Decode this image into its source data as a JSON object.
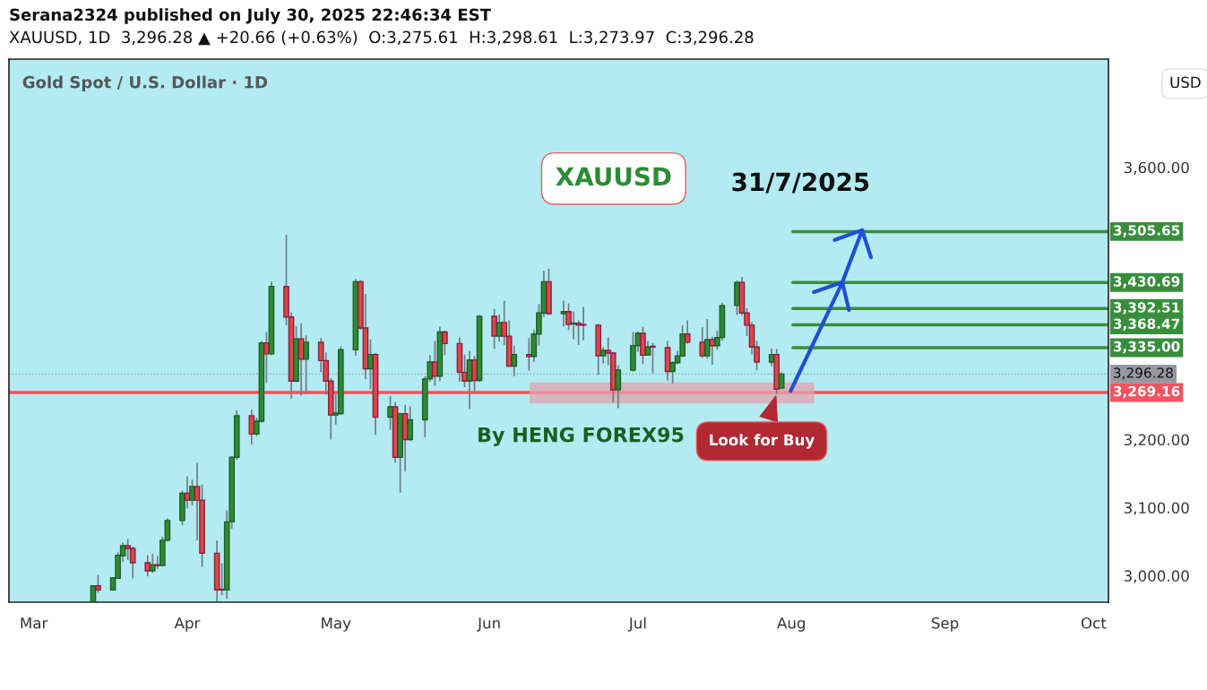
{
  "chart_data": {
    "type": "candlestick",
    "title": "Serana2324 published on July 30, 2025 22:46:34 EST",
    "subtitle": "XAUUSD, 1D  3,296.28 ▲ +20.66 (+0.63%)  O:3,275.61  H:3,298.61  L:3,273.97  C:3,296.28",
    "x": [
      "2025-03-13",
      "2025-03-14",
      "2025-03-17",
      "2025-03-18",
      "2025-03-19",
      "2025-03-20",
      "2025-03-21",
      "2025-03-24",
      "2025-03-25",
      "2025-03-26",
      "2025-03-27",
      "2025-03-28",
      "2025-03-31",
      "2025-04-01",
      "2025-04-02",
      "2025-04-03",
      "2025-04-04",
      "2025-04-07",
      "2025-04-08",
      "2025-04-09",
      "2025-04-10",
      "2025-04-11",
      "2025-04-14",
      "2025-04-15",
      "2025-04-16",
      "2025-04-17",
      "2025-04-18",
      "2025-04-21",
      "2025-04-22",
      "2025-04-23",
      "2025-04-24",
      "2025-04-25",
      "2025-04-28",
      "2025-04-29",
      "2025-04-30",
      "2025-05-01",
      "2025-05-02",
      "2025-05-05",
      "2025-05-06",
      "2025-05-07",
      "2025-05-08",
      "2025-05-09",
      "2025-05-12",
      "2025-05-13",
      "2025-05-14",
      "2025-05-15",
      "2025-05-16",
      "2025-05-19",
      "2025-05-20",
      "2025-05-21",
      "2025-05-22",
      "2025-05-23",
      "2025-05-26",
      "2025-05-27",
      "2025-05-28",
      "2025-05-29",
      "2025-05-30",
      "2025-06-02",
      "2025-06-03",
      "2025-06-04",
      "2025-06-05",
      "2025-06-06",
      "2025-06-09",
      "2025-06-10",
      "2025-06-11",
      "2025-06-12",
      "2025-06-13",
      "2025-06-16",
      "2025-06-17",
      "2025-06-18",
      "2025-06-19",
      "2025-06-20",
      "2025-06-23",
      "2025-06-24",
      "2025-06-25",
      "2025-06-26",
      "2025-06-27",
      "2025-06-30",
      "2025-07-01",
      "2025-07-02",
      "2025-07-03",
      "2025-07-04",
      "2025-07-07",
      "2025-07-08",
      "2025-07-09",
      "2025-07-10",
      "2025-07-11",
      "2025-07-14",
      "2025-07-15",
      "2025-07-16",
      "2025-07-17",
      "2025-07-18",
      "2025-07-21",
      "2025-07-22",
      "2025-07-23",
      "2025-07-24",
      "2025-07-25",
      "2025-07-28",
      "2025-07-29",
      "2025-07-30"
    ],
    "ohlc": [
      [
        2962,
        2985,
        2962,
        2985
      ],
      [
        2985,
        3001,
        2975,
        2979
      ],
      [
        2979,
        2998,
        2978,
        2997
      ],
      [
        2996,
        3034,
        2996,
        3030
      ],
      [
        3029,
        3049,
        3020,
        3044
      ],
      [
        3044,
        3054,
        3023,
        3040
      ],
      [
        3040,
        3043,
        2996,
        3019
      ],
      [
        3019,
        3030,
        2999,
        3007
      ],
      [
        3007,
        3032,
        3004,
        3016
      ],
      [
        3016,
        3029,
        3010,
        3015
      ],
      [
        3015,
        3057,
        3014,
        3052
      ],
      [
        3052,
        3084,
        3050,
        3081
      ],
      [
        3081,
        3125,
        3074,
        3121
      ],
      [
        3121,
        3146,
        3099,
        3111
      ],
      [
        3111,
        3141,
        3103,
        3131
      ],
      [
        3131,
        3166,
        3052,
        3111
      ],
      [
        3111,
        3134,
        3013,
        3033
      ],
      [
        3033,
        3052,
        2962,
        2979
      ],
      [
        2980,
        3018,
        2971,
        2979
      ],
      [
        2979,
        3096,
        2966,
        3079
      ],
      [
        3079,
        3175,
        3069,
        3174
      ],
      [
        3174,
        3243,
        3170,
        3235
      ],
      [
        3235,
        3244,
        3193,
        3208
      ],
      [
        3208,
        3232,
        3205,
        3227
      ],
      [
        3227,
        3345,
        3225,
        3342
      ],
      [
        3342,
        3358,
        3283,
        3326
      ],
      [
        3326,
        3432,
        3324,
        3425
      ],
      [
        3425,
        3501,
        3368,
        3380
      ],
      [
        3380,
        3387,
        3260,
        3286
      ],
      [
        3286,
        3367,
        3284,
        3348
      ],
      [
        3348,
        3371,
        3265,
        3318
      ],
      [
        3318,
        3353,
        3267,
        3343
      ],
      [
        3343,
        3349,
        3299,
        3316
      ],
      [
        3316,
        3328,
        3266,
        3286
      ],
      [
        3286,
        3290,
        3200,
        3236
      ],
      [
        3236,
        3268,
        3222,
        3239
      ],
      [
        3238,
        3337,
        3236,
        3332
      ],
      [
        3332,
        3436,
        3323,
        3432
      ],
      [
        3432,
        3434,
        3361,
        3364
      ],
      [
        3364,
        3414,
        3289,
        3304
      ],
      [
        3304,
        3347,
        3274,
        3325
      ],
      [
        3325,
        3327,
        3207,
        3233
      ],
      [
        3233,
        3264,
        3214,
        3248
      ],
      [
        3248,
        3255,
        3166,
        3174
      ],
      [
        3174,
        3239,
        3122,
        3238
      ],
      [
        3238,
        3251,
        3153,
        3200
      ],
      [
        3200,
        3249,
        3198,
        3229
      ],
      [
        3229,
        3293,
        3203,
        3289
      ],
      [
        3289,
        3324,
        3285,
        3314
      ],
      [
        3314,
        3345,
        3279,
        3293
      ],
      [
        3293,
        3366,
        3286,
        3358
      ],
      [
        3358,
        3360,
        3324,
        3341
      ],
      [
        3341,
        3350,
        3285,
        3299
      ],
      [
        3299,
        3325,
        3277,
        3286
      ],
      [
        3286,
        3330,
        3245,
        3317
      ],
      [
        3317,
        3323,
        3270,
        3287
      ],
      [
        3287,
        3383,
        3285,
        3381
      ],
      [
        3381,
        3392,
        3333,
        3352
      ],
      [
        3352,
        3384,
        3344,
        3372
      ],
      [
        3372,
        3404,
        3339,
        3352
      ],
      [
        3352,
        3375,
        3307,
        3308
      ],
      [
        3308,
        3338,
        3293,
        3325
      ],
      [
        3325,
        3349,
        3301,
        3322
      ],
      [
        3322,
        3361,
        3314,
        3355
      ],
      [
        3355,
        3399,
        3338,
        3386
      ],
      [
        3386,
        3448,
        3380,
        3432
      ],
      [
        3432,
        3451,
        3383,
        3385
      ],
      [
        3385,
        3404,
        3366,
        3388
      ],
      [
        3388,
        3400,
        3361,
        3369
      ],
      [
        3370,
        3388,
        3347,
        3371
      ],
      [
        3371,
        3375,
        3339,
        3368
      ],
      [
        3369,
        3395,
        3346,
        3368
      ],
      [
        3368,
        3370,
        3295,
        3323
      ],
      [
        3323,
        3336,
        3312,
        3331
      ],
      [
        3331,
        3350,
        3309,
        3327
      ],
      [
        3327,
        3329,
        3254,
        3273
      ],
      [
        3273,
        3309,
        3246,
        3302
      ],
      [
        3302,
        3358,
        3300,
        3338
      ],
      [
        3338,
        3359,
        3329,
        3356
      ],
      [
        3356,
        3366,
        3311,
        3324
      ],
      [
        3324,
        3345,
        3323,
        3336
      ],
      [
        3337,
        3342,
        3297,
        3336
      ],
      [
        3335,
        3345,
        3287,
        3300
      ],
      [
        3300,
        3315,
        3282,
        3313
      ],
      [
        3313,
        3330,
        3311,
        3323
      ],
      [
        3323,
        3368,
        3321,
        3355
      ],
      [
        3355,
        3375,
        3341,
        3343
      ],
      [
        3343,
        3365,
        3320,
        3323
      ],
      [
        3323,
        3377,
        3319,
        3347
      ],
      [
        3347,
        3351,
        3310,
        3338
      ],
      [
        3338,
        3360,
        3332,
        3350
      ],
      [
        3350,
        3401,
        3345,
        3397
      ],
      [
        3397,
        3434,
        3383,
        3431
      ],
      [
        3431,
        3439,
        3382,
        3386
      ],
      [
        3386,
        3393,
        3352,
        3368
      ],
      [
        3368,
        3373,
        3325,
        3336
      ],
      [
        3336,
        3345,
        3302,
        3314
      ],
      [
        3314,
        3334,
        3308,
        3325
      ],
      [
        3325,
        3333,
        3267,
        3274
      ],
      [
        3275.61,
        3298.61,
        3273.97,
        3296.28
      ]
    ],
    "colors": [
      "#2e8b35",
      "#dc4a3d",
      "#2e8b35",
      "#2e8b35",
      "#2e8b35",
      "#dc4a3d",
      "#dc4a3d",
      "#dc4a3d",
      "#2e8b35",
      "#dc4a3d",
      "#2e8b35",
      "#2e8b35",
      "#2e8b35",
      "#dc4a3d",
      "#2e8b35",
      "#dc4a3d",
      "#dc4a3d",
      "#dc4a3d",
      "#dc4a3d",
      "#2e8b35",
      "#2e8b35",
      "#2e8b35",
      "#dc4a3d",
      "#2e8b35",
      "#2e8b35",
      "#dc4a3d",
      "#2e8b35",
      "#dc4a3d",
      "#dc4a3d",
      "#2e8b35",
      "#dc4a3d",
      "#2e8b35",
      "#dc4a3d",
      "#dc4a3d",
      "#dc4a3d",
      "#2e8b35",
      "#2e8b35",
      "#2e8b35",
      "#dc4a3d",
      "#dc4a3d",
      "#2e8b35",
      "#dc4a3d",
      "#2e8b35",
      "#dc4a3d",
      "#2e8b35",
      "#dc4a3d",
      "#2e8b35",
      "#2e8b35",
      "#2e8b35",
      "#dc4a3d",
      "#2e8b35",
      "#dc4a3d",
      "#dc4a3d",
      "#dc4a3d",
      "#2e8b35",
      "#dc4a3d",
      "#2e8b35",
      "#dc4a3d",
      "#2e8b35",
      "#dc4a3d",
      "#dc4a3d",
      "#2e8b35",
      "#dc4a3d",
      "#2e8b35",
      "#2e8b35",
      "#2e8b35",
      "#dc4a3d",
      "#2e8b35",
      "#dc4a3d",
      "#2e8b35",
      "#dc4a3d",
      "#dc4a3d",
      "#dc4a3d",
      "#2e8b35",
      "#dc4a3d",
      "#dc4a3d",
      "#2e8b35",
      "#2e8b35",
      "#2e8b35",
      "#dc4a3d",
      "#2e8b35",
      "#dc4a3d",
      "#dc4a3d",
      "#2e8b35",
      "#2e8b35",
      "#2e8b35",
      "#dc4a3d",
      "#dc4a3d",
      "#2e8b35",
      "#dc4a3d",
      "#2e8b35",
      "#2e8b35",
      "#2e8b35",
      "#dc4a3d",
      "#dc4a3d",
      "#dc4a3d",
      "#dc4a3d",
      "#2e8b35",
      "#dc4a3d",
      "#2e8b35"
    ],
    "xlim": [
      "2025-02-24",
      "2025-10-04"
    ],
    "xticks": [
      {
        "value": "2025-03-01",
        "label": "Mar"
      },
      {
        "value": "2025-04-01",
        "label": "Apr"
      },
      {
        "value": "2025-05-01",
        "label": "May"
      },
      {
        "value": "2025-06-01",
        "label": "Jun"
      },
      {
        "value": "2025-07-01",
        "label": "Jul"
      },
      {
        "value": "2025-08-01",
        "label": "Aug"
      },
      {
        "value": "2025-09-01",
        "label": "Sep"
      },
      {
        "value": "2025-10-01",
        "label": "Oct"
      }
    ],
    "ylim": [
      2961,
      3759
    ],
    "yticks": [
      {
        "value": 3000,
        "label": "3,000.00"
      },
      {
        "value": 3100,
        "label": "3,100.00"
      },
      {
        "value": 3200,
        "label": "3,200.00"
      },
      {
        "value": 3600,
        "label": "3,600.00"
      }
    ],
    "ref_lines": [
      {
        "axis": "y",
        "value": 3269.16,
        "label": "3,269.16",
        "color": "#f7525f",
        "line_style": "solid"
      },
      {
        "axis": "y",
        "value": 3296.28,
        "label": "3,296.28",
        "color": "#9598a1",
        "line_style": "dotted"
      },
      {
        "axis": "y",
        "value": 3335.0,
        "label": "3,335.00",
        "color": "#388e3c",
        "line_style": "solid"
      },
      {
        "axis": "y",
        "value": 3368.47,
        "label": "3,368.47",
        "color": "#388e3c",
        "line_style": "solid"
      },
      {
        "axis": "y",
        "value": 3392.51,
        "label": "3,392.51",
        "color": "#388e3c",
        "line_style": "solid"
      },
      {
        "axis": "y",
        "value": 3430.69,
        "label": "3,430.69",
        "color": "#388e3c",
        "line_style": "solid"
      },
      {
        "axis": "y",
        "value": 3505.65,
        "label": "3,505.65",
        "color": "#388e3c",
        "line_style": "solid"
      }
    ],
    "bands": [
      {
        "axis": "y",
        "from": 3254,
        "to": 3283,
        "color": "#e3a3ad"
      }
    ],
    "annotations": [
      "Gold Spot / U.S. Dollar · 1D",
      "USD",
      "XAUUSD",
      "31/7/2025",
      "By HENG FOREX95",
      {
        "text": "Look for Buy",
        "x": "2025-07-29",
        "y": 3267
      }
    ],
    "grid": false
  }
}
